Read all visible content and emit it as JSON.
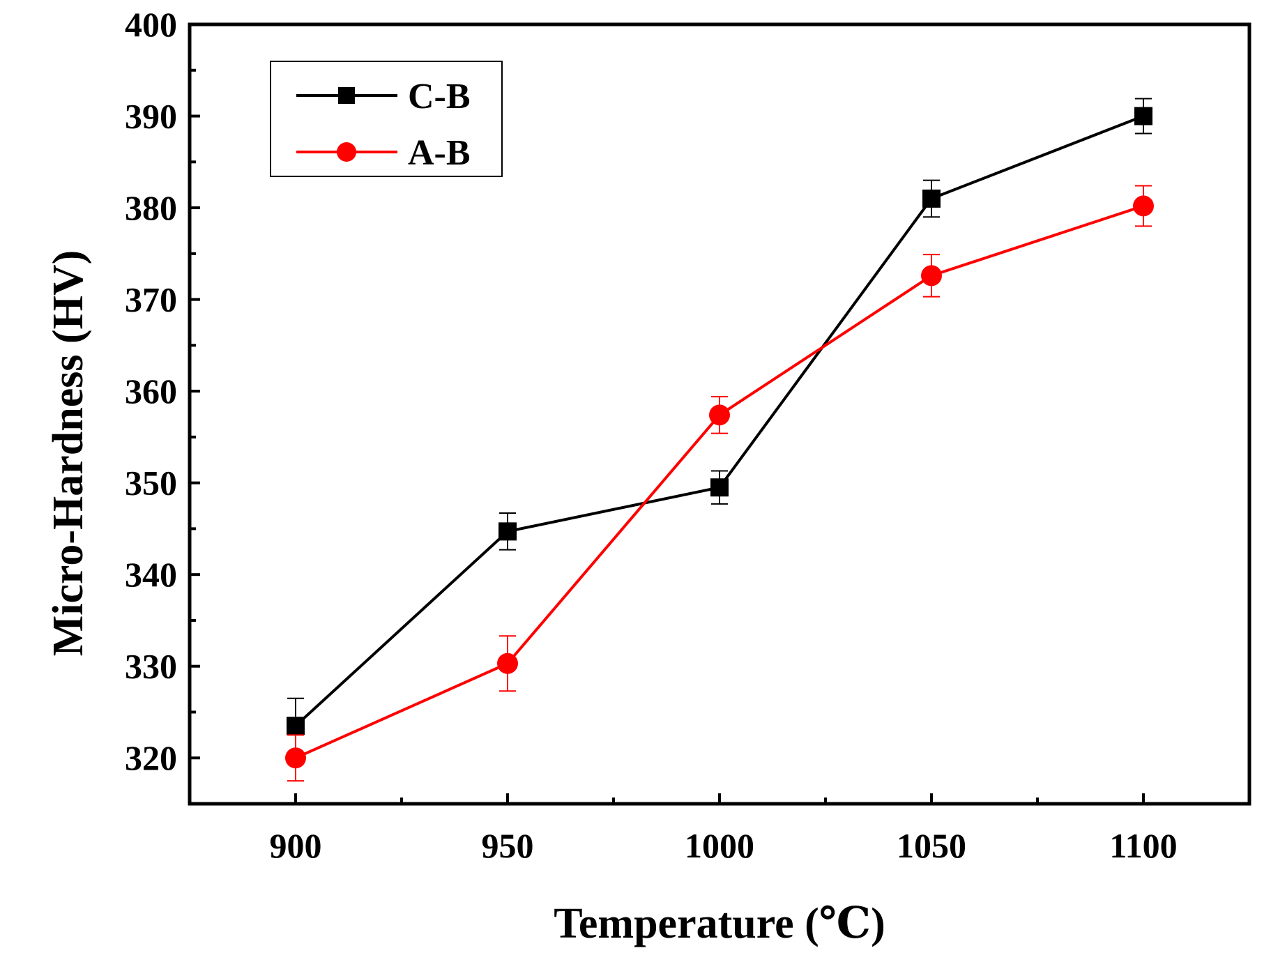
{
  "chart_data": {
    "type": "line",
    "title": "",
    "xlabel": "Temperature (℃)",
    "ylabel": "Micro-Hardness (HV)",
    "x": [
      900,
      950,
      1000,
      1050,
      1100
    ],
    "xlim": [
      875,
      1125
    ],
    "ylim": [
      315,
      400
    ],
    "xticks": [
      900,
      950,
      1000,
      1050,
      1100
    ],
    "yticks": [
      320,
      330,
      340,
      350,
      360,
      370,
      380,
      390,
      400
    ],
    "grid": false,
    "legend_position": "top-left",
    "series": [
      {
        "name": "C-B",
        "color": "#000000",
        "marker": "square",
        "values": [
          323.5,
          344.7,
          349.5,
          381.0,
          390.0
        ],
        "errors": [
          3.0,
          2.0,
          1.8,
          2.0,
          1.9
        ]
      },
      {
        "name": "A-B",
        "color": "#ff0000",
        "marker": "circle",
        "values": [
          320.0,
          330.3,
          357.4,
          372.6,
          380.2
        ],
        "errors": [
          2.5,
          3.0,
          2.0,
          2.3,
          2.2
        ]
      }
    ]
  }
}
